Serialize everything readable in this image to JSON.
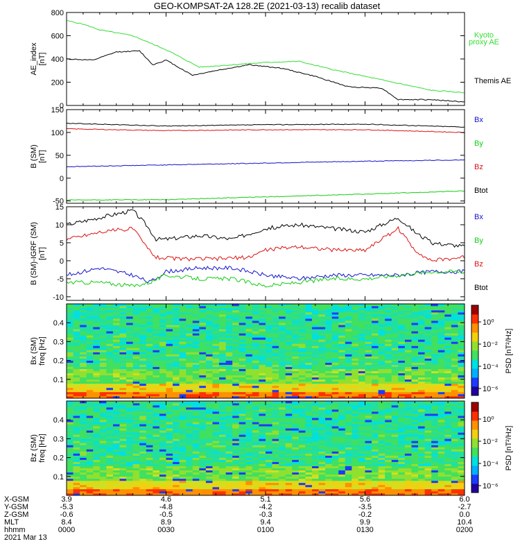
{
  "title": "GEO-KOMPSAT-2A 128.2E (2021-03-13) recalib dataset",
  "colors": {
    "black": "#000000",
    "red": "#dd1111",
    "blue": "#1111cc",
    "green": "#11cc11",
    "kyoto": "#33dd33"
  },
  "chart_data": [
    {
      "id": "ae",
      "type": "line",
      "ylabel": "AE_index",
      "yunits": "[nT]",
      "ylim": [
        0,
        800
      ],
      "yticks": [
        "0",
        "200",
        "400",
        "600",
        "800"
      ],
      "legend": [
        {
          "text": "Kyoto",
          "color": "#33dd33"
        },
        {
          "text": "proxy AE",
          "color": "#33dd33"
        },
        {
          "text": "Themis AE",
          "color": "#000000"
        }
      ],
      "series": [
        {
          "name": "Kyoto proxy AE",
          "color": "#33dd33",
          "x": [
            0,
            5,
            10,
            20,
            30,
            40,
            50,
            60,
            70,
            80,
            90,
            100,
            110,
            120
          ],
          "values": [
            730,
            700,
            650,
            600,
            480,
            330,
            350,
            370,
            380,
            310,
            250,
            190,
            130,
            110
          ]
        },
        {
          "name": "Themis AE",
          "color": "#000000",
          "x": [
            0,
            8,
            15,
            22,
            26,
            30,
            38,
            45,
            55,
            65,
            75,
            85,
            95,
            100,
            110,
            120
          ],
          "values": [
            400,
            390,
            460,
            470,
            350,
            390,
            260,
            300,
            350,
            320,
            250,
            160,
            150,
            50,
            50,
            30
          ]
        }
      ]
    },
    {
      "id": "bsm",
      "type": "line",
      "ylabel": "B (SM)",
      "yunits": "[nT]",
      "ylim": [
        -55,
        150
      ],
      "yticks": [
        "-50",
        "0",
        "50",
        "100",
        "150"
      ],
      "legend": [
        {
          "text": "Bx",
          "color": "#1111cc"
        },
        {
          "text": "By",
          "color": "#11cc11"
        },
        {
          "text": "Bz",
          "color": "#dd1111"
        },
        {
          "text": "Btot",
          "color": "#000000"
        }
      ],
      "series": [
        {
          "name": "Btot",
          "color": "#000000",
          "x": [
            0,
            30,
            60,
            90,
            120
          ],
          "values": [
            120,
            114,
            117,
            118,
            112
          ]
        },
        {
          "name": "Bz",
          "color": "#dd1111",
          "x": [
            0,
            30,
            60,
            90,
            120
          ],
          "values": [
            108,
            104,
            106,
            106,
            100
          ]
        },
        {
          "name": "Bx",
          "color": "#1111cc",
          "x": [
            0,
            30,
            60,
            90,
            120
          ],
          "values": [
            25,
            29,
            33,
            37,
            40
          ]
        },
        {
          "name": "By",
          "color": "#11cc11",
          "x": [
            0,
            30,
            60,
            90,
            120
          ],
          "values": [
            -48,
            -47,
            -41,
            -35,
            -28
          ]
        }
      ]
    },
    {
      "id": "bdiff",
      "type": "line",
      "ylabel": "B (SM)-IGRF (SM)",
      "yunits": "[nT]",
      "ylim": [
        -11,
        15
      ],
      "yticks": [
        "-10",
        "-5",
        "0",
        "5",
        "10",
        "15"
      ],
      "legend": [
        {
          "text": "Bx",
          "color": "#1111cc"
        },
        {
          "text": "By",
          "color": "#11cc11"
        },
        {
          "text": "Bz",
          "color": "#dd1111"
        },
        {
          "text": "Btot",
          "color": "#000000"
        }
      ],
      "series": [
        {
          "name": "Btot",
          "color": "#000000",
          "x": [
            0,
            10,
            20,
            24,
            27,
            30,
            40,
            50,
            60,
            70,
            80,
            90,
            100,
            105,
            110,
            120
          ],
          "values": [
            10,
            12,
            14,
            10,
            6,
            6,
            7,
            6,
            9,
            10,
            9,
            8,
            12,
            8,
            5,
            4
          ]
        },
        {
          "name": "Bz",
          "color": "#dd1111",
          "x": [
            0,
            10,
            20,
            24,
            27,
            35,
            45,
            55,
            60,
            70,
            80,
            90,
            100,
            105,
            110,
            120
          ],
          "values": [
            6,
            8,
            9,
            4,
            1,
            0.5,
            0.5,
            1,
            3,
            4,
            3,
            3,
            9,
            3,
            0,
            1
          ]
        },
        {
          "name": "Bx",
          "color": "#1111cc",
          "x": [
            0,
            10,
            20,
            25,
            30,
            40,
            50,
            55,
            60,
            70,
            80,
            90,
            100,
            110,
            120
          ],
          "values": [
            -4,
            -2,
            -4,
            -6,
            -3,
            -2,
            -2,
            -3,
            -4,
            -5,
            -4,
            -4,
            -4,
            -3,
            -3
          ]
        },
        {
          "name": "By",
          "color": "#11cc11",
          "x": [
            0,
            10,
            20,
            25,
            30,
            40,
            50,
            55,
            60,
            70,
            80,
            90,
            100,
            110,
            120
          ],
          "values": [
            -6,
            -6,
            -7,
            -6,
            -4,
            -5,
            -5,
            -6,
            -7,
            -6,
            -5,
            -5,
            -4,
            -3,
            -3
          ]
        }
      ]
    },
    {
      "id": "bx-psd",
      "type": "heatmap",
      "ylabel": "Bx (SM)",
      "yunits": "freq [Hz]",
      "ylim": [
        0,
        0.5
      ],
      "yticks": [
        "0.1",
        "0.2",
        "0.3",
        "0.4"
      ],
      "colorbar_label": "PSD [nT²/Hz]",
      "colorbar_ticks": [
        "10⁰",
        "10⁻²",
        "10⁻⁴",
        "10⁻⁶"
      ]
    },
    {
      "id": "bz-psd",
      "type": "heatmap",
      "ylabel": "Bz (SM)",
      "yunits": "freq [Hz]",
      "ylim": [
        0,
        0.5
      ],
      "yticks": [
        "0.1",
        "0.2",
        "0.3",
        "0.4"
      ],
      "colorbar_label": "PSD [nT²/Hz]",
      "colorbar_ticks": [
        "10⁰",
        "10⁻²",
        "10⁻⁴",
        "10⁻⁶"
      ]
    }
  ],
  "xaxis": {
    "row_labels": [
      "X-GSM",
      "Y-GSM",
      "Z-GSM",
      "MLT",
      "hhmm"
    ],
    "date": "2021 Mar 13",
    "ticks": [
      {
        "minutes": 0,
        "values": [
          "3.9",
          "-5.3",
          "-0.6",
          "8.4",
          "0000"
        ]
      },
      {
        "minutes": 30,
        "values": [
          "4.6",
          "-4.8",
          "-0.5",
          "8.9",
          "0030"
        ]
      },
      {
        "minutes": 60,
        "values": [
          "5.1",
          "-4.2",
          "-0.3",
          "9.4",
          "0100"
        ]
      },
      {
        "minutes": 90,
        "values": [
          "5.6",
          "-3.5",
          "-0.2",
          "9.9",
          "0130"
        ]
      },
      {
        "minutes": 120,
        "values": [
          "6.0",
          "-2.7",
          "0.0",
          "10.4",
          "0200"
        ]
      }
    ]
  }
}
